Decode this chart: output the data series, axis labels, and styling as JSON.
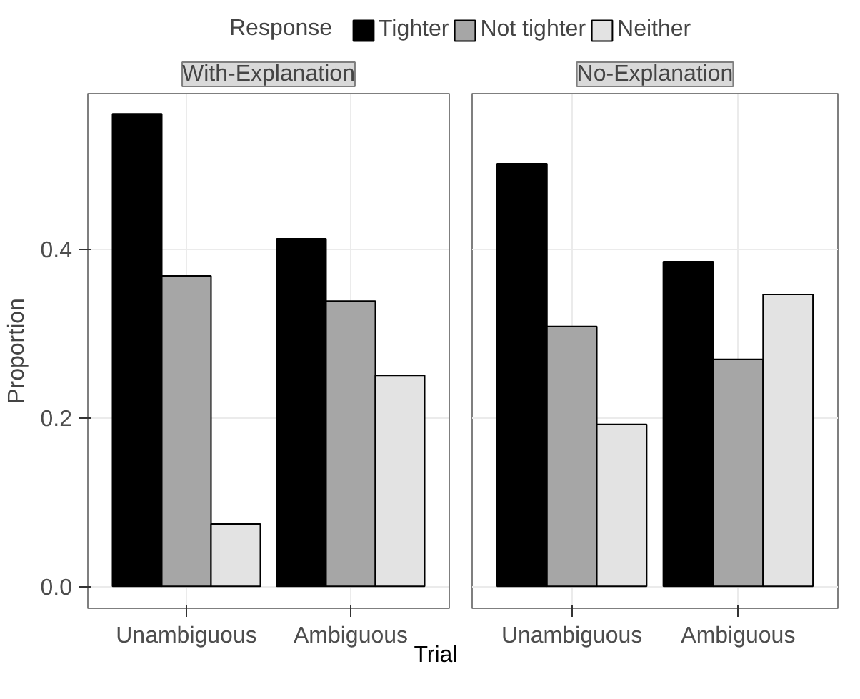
{
  "chart_data": [
    {
      "type": "bar",
      "title": "With-Explanation",
      "xlabel": "Trial",
      "ylabel": "Proportion",
      "legend_title": "Response",
      "legend": "top",
      "categories": [
        "Unambiguous",
        "Ambiguous"
      ],
      "ylim": [
        -0.026,
        0.584
      ],
      "yticks": [
        {
          "value": 0,
          "label": "0.0"
        },
        0.2,
        0.4
      ],
      "grid": true,
      "series": [
        {
          "name": "Tighter",
          "color": "#000000",
          "values": [
            0.56,
            0.412
          ]
        },
        {
          "name": "Not tighter",
          "color": "#a6a6a6",
          "values": [
            0.368,
            0.338
          ]
        },
        {
          "name": "Neither",
          "color": "#e3e3e3",
          "values": [
            0.074,
            0.25
          ]
        }
      ]
    },
    {
      "type": "bar",
      "title": "No-Explanation",
      "categories": [
        "Unambiguous",
        "Ambiguous"
      ],
      "ylim": [
        -0.026,
        0.584
      ],
      "yticks": [
        0,
        0.2,
        0.4
      ],
      "grid": true,
      "tick_labels": "x",
      "series": [
        {
          "color": "#000000",
          "values": [
            0.501,
            0.385
          ]
        },
        {
          "color": "#a6a6a6",
          "values": [
            0.308,
            0.269
          ]
        },
        {
          "color": "#e3e3e3",
          "values": [
            0.192,
            0.346
          ]
        }
      ]
    }
  ]
}
